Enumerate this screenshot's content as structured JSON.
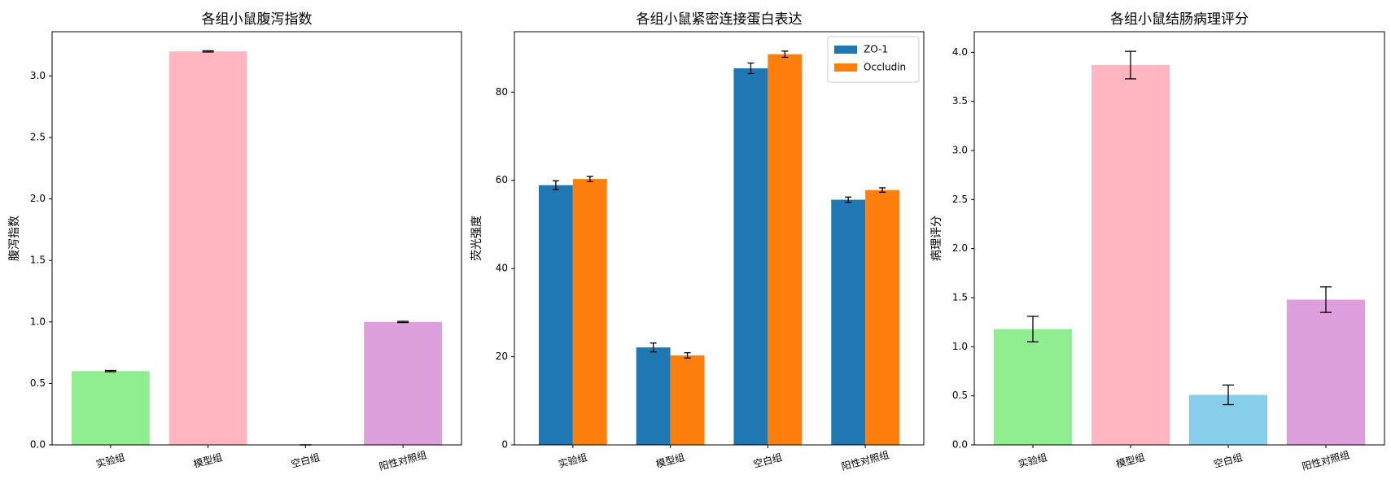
{
  "chart_data": [
    {
      "type": "bar",
      "title": "各组小鼠腹泻指数",
      "ylabel": "腹泻指数",
      "categories": [
        "实验组",
        "模型组",
        "空白组",
        "阳性对照组"
      ],
      "values": [
        0.6,
        3.2,
        0,
        1.0
      ],
      "errors": [
        0.005,
        0.005,
        0,
        0.005
      ],
      "colors": [
        "#90ee90",
        "#ffb6c1",
        "#87ceeb",
        "#dda0dd"
      ],
      "ylim": [
        0,
        3.36
      ],
      "yticks": [
        {
          "value": 0,
          "label": "0.0"
        },
        0.5,
        {
          "value": 1,
          "label": "1.0"
        },
        1.5,
        {
          "value": 2,
          "label": "2.0"
        },
        2.5,
        {
          "value": 3,
          "label": "3.0"
        }
      ]
    },
    {
      "type": "grouped-bar",
      "title": "各组小鼠紧密连接蛋白表达",
      "ylabel": "荧光强度",
      "categories": [
        "实验组",
        "模型组",
        "空白组",
        "阳性对照组"
      ],
      "series": [
        {
          "name": "ZO-1",
          "color": "#1f77b4",
          "values": [
            58.9,
            22.1,
            85.4,
            55.6
          ],
          "errors": [
            1.0,
            1.0,
            1.2,
            0.6
          ]
        },
        {
          "name": "Occludin",
          "color": "#ff7f0e",
          "values": [
            60.3,
            20.3,
            88.6,
            57.8
          ],
          "errors": [
            0.6,
            0.6,
            0.7,
            0.5
          ]
        }
      ],
      "ylim": [
        0,
        93.7
      ],
      "yticks": [
        0,
        20,
        40,
        60,
        80
      ],
      "legend": "upper right"
    },
    {
      "type": "bar",
      "title": "各组小鼠结肠病理评分",
      "ylabel": "病理评分",
      "categories": [
        "实验组",
        "模型组",
        "空白组",
        "阳性对照组"
      ],
      "values": [
        1.18,
        3.87,
        0.51,
        1.48
      ],
      "errors": [
        0.13,
        0.14,
        0.1,
        0.13
      ],
      "colors": [
        "#90ee90",
        "#ffb6c1",
        "#87ceeb",
        "#dda0dd"
      ],
      "ylim": [
        0,
        4.21
      ],
      "yticks": [
        {
          "value": 0,
          "label": "0.0"
        },
        0.5,
        {
          "value": 1,
          "label": "1.0"
        },
        1.5,
        {
          "value": 2,
          "label": "2.0"
        },
        2.5,
        {
          "value": 3,
          "label": "3.0"
        },
        3.5,
        {
          "value": 4,
          "label": "4.0"
        }
      ]
    }
  ]
}
